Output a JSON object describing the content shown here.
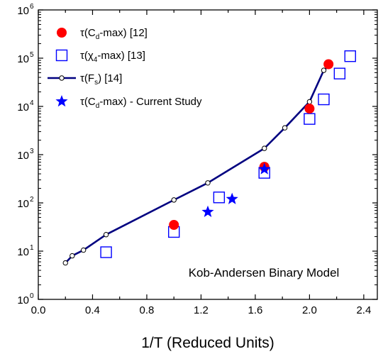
{
  "chart_data": {
    "type": "scatter",
    "title": "",
    "xlabel": "1/T (Reduced Units)",
    "ylabel": "",
    "xlim": [
      0.0,
      2.5
    ],
    "ylim": [
      1,
      1000000
    ],
    "yscale": "log",
    "x_ticks": [
      "0.0",
      "0.4",
      "0.8",
      "1.2",
      "1.6",
      "2.0",
      "2.4"
    ],
    "x_tick_values": [
      0.0,
      0.4,
      0.8,
      1.2,
      1.6,
      2.0,
      2.4
    ],
    "y_ticks": [
      {
        "base": "10",
        "exp": "0",
        "value": 1
      },
      {
        "base": "10",
        "exp": "1",
        "value": 10
      },
      {
        "base": "10",
        "exp": "2",
        "value": 100
      },
      {
        "base": "10",
        "exp": "3",
        "value": 1000
      },
      {
        "base": "10",
        "exp": "4",
        "value": 10000
      },
      {
        "base": "10",
        "exp": "5",
        "value": 100000
      },
      {
        "base": "10",
        "exp": "6",
        "value": 1000000
      }
    ],
    "grid": false,
    "legend_position": "top-left",
    "annotation": "Kob-Andersen Binary Model",
    "series": [
      {
        "name": "τ(Cd-max) [12]",
        "legend": {
          "pre": "τ(C",
          "sub": "d",
          "post": "-max)  [12]"
        },
        "marker": "filled-circle",
        "color": "#ff0000",
        "points": [
          {
            "x": 1.0,
            "y": 35
          },
          {
            "x": 1.667,
            "y": 560
          },
          {
            "x": 2.0,
            "y": 9000
          },
          {
            "x": 2.14,
            "y": 75000
          }
        ]
      },
      {
        "name": "τ(χ4-max) [13]",
        "legend": {
          "pre": "τ(χ",
          "sub": "4",
          "post": "-max)   [13]"
        },
        "marker": "open-square",
        "color": "#0000ff",
        "points": [
          {
            "x": 0.5,
            "y": 9.5
          },
          {
            "x": 1.0,
            "y": 25
          },
          {
            "x": 1.333,
            "y": 130
          },
          {
            "x": 1.667,
            "y": 420
          },
          {
            "x": 2.0,
            "y": 5500
          },
          {
            "x": 2.105,
            "y": 14000
          },
          {
            "x": 2.222,
            "y": 48000
          },
          {
            "x": 2.3,
            "y": 110000
          }
        ]
      },
      {
        "name": "τ(Fs) [14]",
        "legend": {
          "pre": "τ(F",
          "sub": "s",
          "post": ") [14]"
        },
        "marker": "line-open-circle",
        "color": "#000080",
        "points": [
          {
            "x": 0.2,
            "y": 5.7
          },
          {
            "x": 0.25,
            "y": 8
          },
          {
            "x": 0.333,
            "y": 10.5
          },
          {
            "x": 0.5,
            "y": 22
          },
          {
            "x": 1.0,
            "y": 115
          },
          {
            "x": 1.25,
            "y": 260
          },
          {
            "x": 1.667,
            "y": 1350
          },
          {
            "x": 1.818,
            "y": 3600
          },
          {
            "x": 2.0,
            "y": 12500
          },
          {
            "x": 2.105,
            "y": 56000
          },
          {
            "x": 2.15,
            "y": 72000
          }
        ]
      },
      {
        "name": "τ(Cd-max) - Current Study",
        "legend": {
          "pre": "τ(C",
          "sub": "d",
          "post": "-max) - Current Study"
        },
        "marker": "filled-star",
        "color": "#0000ff",
        "points": [
          {
            "x": 1.25,
            "y": 65
          },
          {
            "x": 1.429,
            "y": 120
          },
          {
            "x": 1.667,
            "y": 500
          }
        ]
      }
    ]
  }
}
